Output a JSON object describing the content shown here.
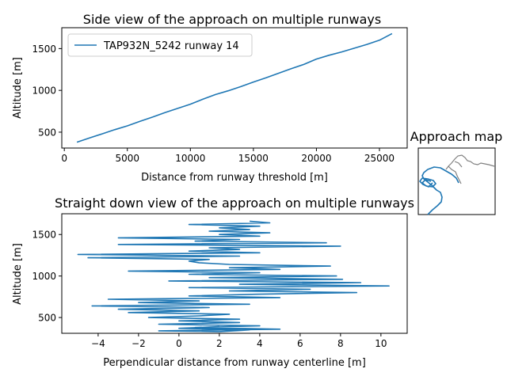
{
  "colors": {
    "series": "#1f77b4",
    "map_land": "#808080",
    "axis": "#000000"
  },
  "chart_data": [
    {
      "type": "line",
      "title": "Side view of the approach on multiple runways",
      "xlabel": "Distance from runway threshold [m]",
      "ylabel": "Altitude [m]",
      "xlim": [
        -200,
        27200
      ],
      "ylim": [
        310,
        1750
      ],
      "xticks": [
        0,
        5000,
        10000,
        15000,
        20000,
        25000
      ],
      "yticks": [
        500,
        1000,
        1500
      ],
      "grid": false,
      "legend": "top-left",
      "series": [
        {
          "name": "TAP932N_5242 runway 14",
          "x": [
            1000,
            2000,
            3000,
            4000,
            5000,
            6000,
            7000,
            8000,
            9000,
            10000,
            11000,
            12000,
            13000,
            14000,
            15000,
            16000,
            17000,
            18000,
            19000,
            20000,
            21000,
            22000,
            23000,
            24000,
            25000,
            26000
          ],
          "y": [
            380,
            430,
            480,
            530,
            575,
            630,
            680,
            735,
            785,
            835,
            895,
            950,
            995,
            1045,
            1100,
            1150,
            1205,
            1260,
            1310,
            1375,
            1420,
            1460,
            1505,
            1550,
            1600,
            1680
          ]
        }
      ]
    },
    {
      "type": "line",
      "title": "Straight down view of the approach on multiple runways",
      "xlabel": "Perpendicular distance from runway centerline [m]",
      "ylabel": "Altitude [m]",
      "xlim": [
        -5.8,
        11.3
      ],
      "ylim": [
        310,
        1750
      ],
      "xticks": [
        -4,
        -2,
        0,
        2,
        4,
        6,
        8,
        10
      ],
      "yticks": [
        500,
        1000,
        1500
      ],
      "grid": false,
      "series": [
        {
          "x": [
            3.5,
            4.5,
            0.5,
            4,
            2,
            3.5,
            1.5,
            4.5,
            2,
            4,
            -3,
            3,
            0.8,
            7.3,
            -3,
            8.0,
            1.5,
            3,
            0.5,
            4,
            -5,
            3,
            -4.5,
            1.5,
            0.5,
            1,
            2.5,
            7.5,
            2.5,
            5,
            -2.5,
            4,
            0.5,
            7.8,
            1.5,
            8.1,
            -0.5,
            9,
            3,
            10.4,
            0.5,
            6.5,
            2.5,
            8.8,
            3.8,
            0.5,
            5,
            -3.5,
            1,
            -2,
            3.5,
            -4.3,
            1.5,
            -3,
            1,
            -2.5,
            2.5,
            1,
            -1.5,
            3,
            0,
            3,
            -1,
            4,
            0.8,
            5,
            -1,
            2,
            3.5,
            0,
            2
          ],
          "y": [
            1660,
            1640,
            1620,
            1600,
            1580,
            1560,
            1540,
            1520,
            1500,
            1480,
            1460,
            1440,
            1420,
            1400,
            1380,
            1360,
            1340,
            1320,
            1300,
            1280,
            1260,
            1240,
            1220,
            1200,
            1180,
            1160,
            1140,
            1120,
            1100,
            1080,
            1060,
            1040,
            1020,
            1000,
            980,
            960,
            940,
            920,
            900,
            880,
            860,
            840,
            820,
            800,
            780,
            760,
            740,
            720,
            700,
            680,
            660,
            640,
            620,
            600,
            580,
            560,
            540,
            520,
            500,
            480,
            460,
            440,
            420,
            400,
            380,
            360,
            340,
            330,
            350,
            370,
            390
          ]
        }
      ]
    }
  ],
  "map": {
    "title": "Approach map"
  }
}
